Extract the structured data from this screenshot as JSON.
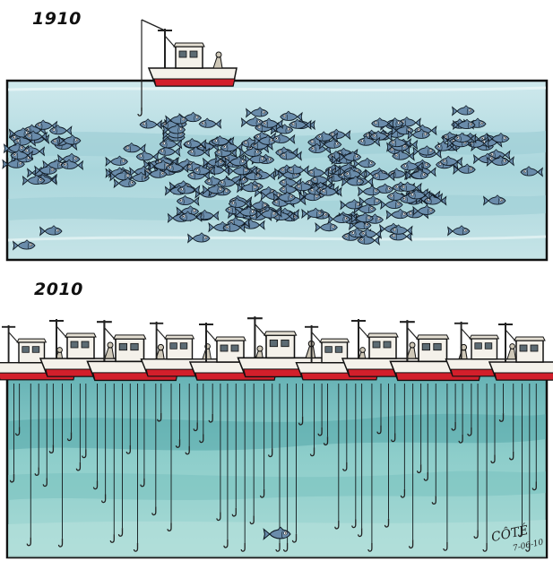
{
  "panels": {
    "top": {
      "year": "1910"
    },
    "bottom": {
      "year": "2010"
    }
  },
  "signature": {
    "name": "CÔTÉ",
    "date": "7-06-10"
  },
  "colors": {
    "water_light": "#bfe0e4",
    "water_mid": "#8cc9cf",
    "water_dark_band": "#4f9ea7",
    "boat_hull_red": "#d21f2b",
    "boat_body": "#f4f1ea",
    "fish": "#5e7fa0",
    "outline": "#111111"
  },
  "icons": [
    "fishing-boat-icon",
    "fish-icon",
    "fishing-hook-icon"
  ]
}
